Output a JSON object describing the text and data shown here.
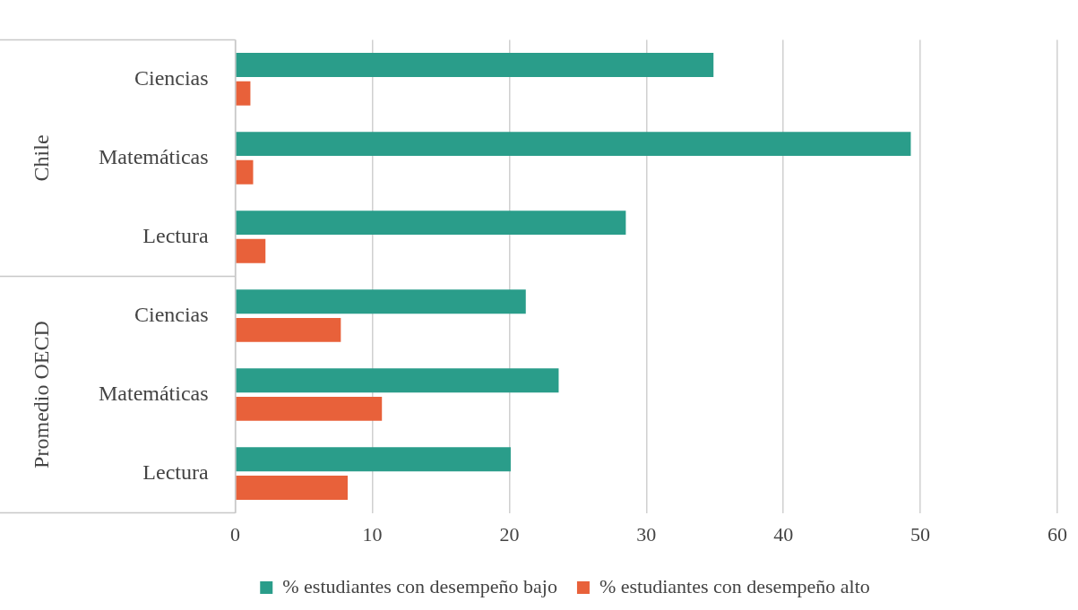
{
  "chart_data": {
    "type": "bar",
    "orientation": "horizontal",
    "categories": [
      "Ciencias",
      "Matemáticas",
      "Lectura",
      "Ciencias",
      "Matemáticas",
      "Lectura"
    ],
    "series": [
      {
        "name": "% estudiantes con desempeño bajo",
        "color": "#2a9d8a",
        "values": [
          34.9,
          49.3,
          28.5,
          21.2,
          23.6,
          20.1
        ]
      },
      {
        "name": "% estudiantes con desempeño alto",
        "color": "#e8613a",
        "values": [
          1.1,
          1.3,
          2.2,
          7.7,
          10.7,
          8.2
        ]
      }
    ],
    "xlim": [
      0,
      60
    ],
    "xticks": [
      0,
      10,
      20,
      30,
      40,
      50,
      60
    ],
    "grid": "x",
    "legend": "bottom",
    "annotations": [
      "Chile",
      "Promedio OECD"
    ]
  }
}
